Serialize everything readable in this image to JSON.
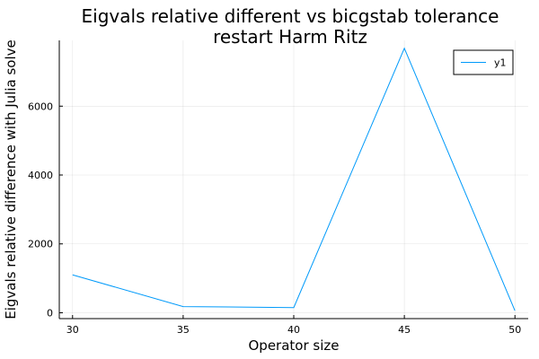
{
  "chart_data": {
    "type": "line",
    "title_line1": "Eigvals relative different vs bicgstab tolerance",
    "title_line2": "restart Harm Ritz",
    "xlabel": "Operator size",
    "ylabel": "Eigvals relative difference with Julia solve",
    "x": [
      30,
      35,
      40,
      45,
      50
    ],
    "series": [
      {
        "name": "y1",
        "color": "#009AFA",
        "values": [
          1100,
          180,
          150,
          7680,
          60
        ]
      }
    ],
    "xlim": [
      29.4,
      50.6
    ],
    "ylim": [
      -170,
      7910
    ],
    "xticks": [
      30,
      35,
      40,
      45,
      50
    ],
    "yticks": [
      0,
      2000,
      4000,
      6000
    ],
    "grid": true,
    "legend_position": "top-right"
  }
}
